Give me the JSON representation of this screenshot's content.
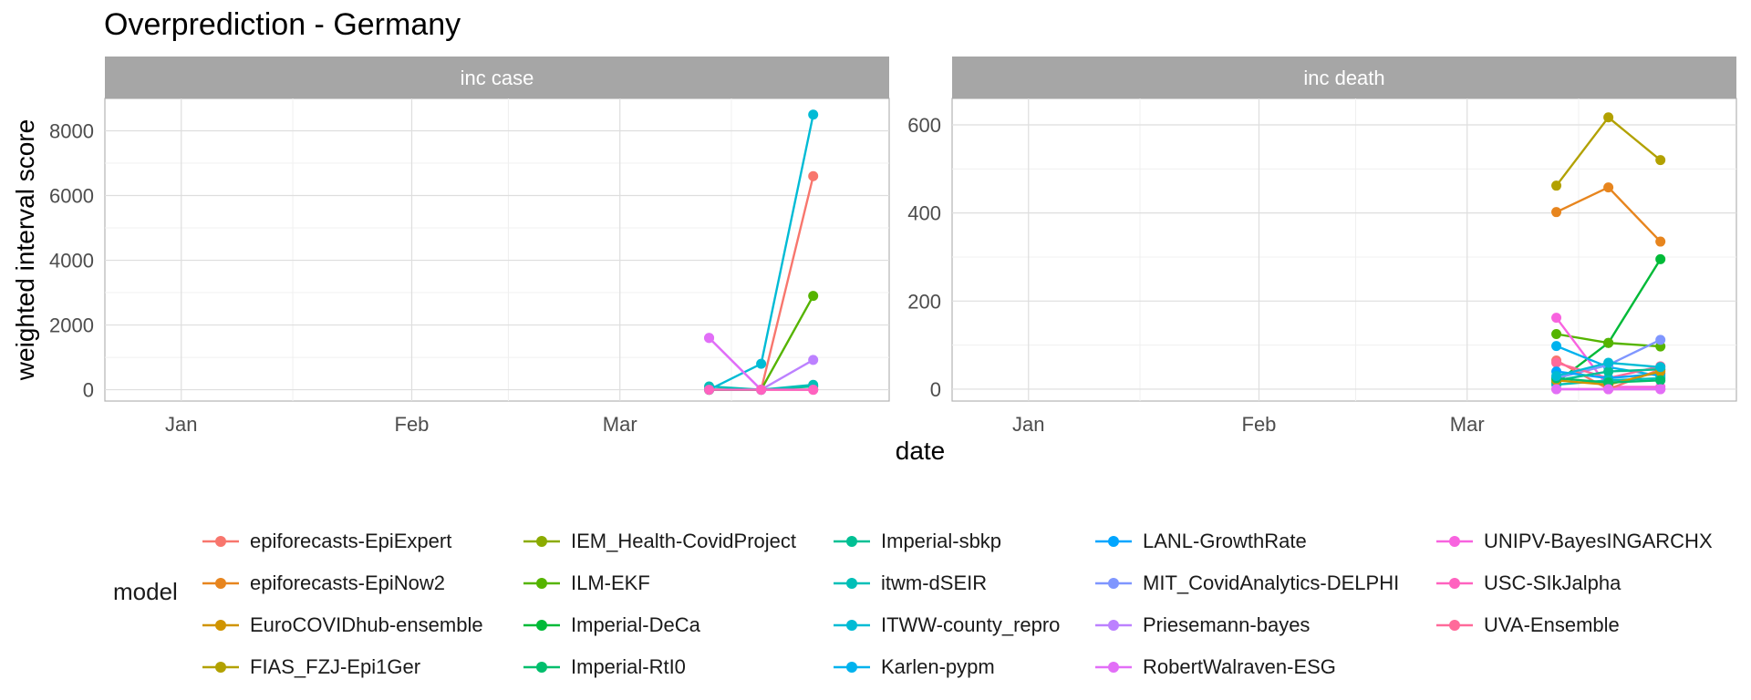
{
  "chart_data": {
    "type": "line",
    "title": "Overprediction - Germany",
    "xlabel": "date",
    "ylabel": "weighted interval score",
    "legend_title": "model",
    "legend_position": "bottom",
    "grid": true,
    "x_ticks": [
      "Jan",
      "Feb",
      "Mar"
    ],
    "x_dates": [
      "2021-03-13",
      "2021-03-20",
      "2021-03-27"
    ],
    "xlim": [
      "2020-12-27",
      "2021-03-27"
    ],
    "models": [
      {
        "name": "epiforecasts-EpiExpert",
        "color": "#F8766D"
      },
      {
        "name": "epiforecasts-EpiNow2",
        "color": "#E7851E"
      },
      {
        "name": "EuroCOVIDhub-ensemble",
        "color": "#D09400"
      },
      {
        "name": "FIAS_FZJ-Epi1Ger",
        "color": "#B2A100"
      },
      {
        "name": "IEM_Health-CovidProject",
        "color": "#8BAB00"
      },
      {
        "name": "ILM-EKF",
        "color": "#55B400"
      },
      {
        "name": "Imperial-DeCa",
        "color": "#00BA38"
      },
      {
        "name": "Imperial-RtI0",
        "color": "#00BE6C"
      },
      {
        "name": "Imperial-sbkp",
        "color": "#00C094"
      },
      {
        "name": "itwm-dSEIR",
        "color": "#00BFB7"
      },
      {
        "name": "ITWW-county_repro",
        "color": "#00BBD5"
      },
      {
        "name": "Karlen-pypm",
        "color": "#00B2EE"
      },
      {
        "name": "LANL-GrowthRate",
        "color": "#00A5FF"
      },
      {
        "name": "MIT_CovidAnalytics-DELPHI",
        "color": "#7F96FF"
      },
      {
        "name": "Priesemann-bayes",
        "color": "#BC81FF"
      },
      {
        "name": "RobertWalraven-ESG",
        "color": "#E26EF7"
      },
      {
        "name": "UNIPV-BayesINGARCHX",
        "color": "#F863DF"
      },
      {
        "name": "USC-SIkJalpha",
        "color": "#FF62BF"
      },
      {
        "name": "UVA-Ensemble",
        "color": "#FF6A9A"
      }
    ],
    "panels": [
      {
        "strip": "inc case",
        "ylim": [
          -350,
          9000
        ],
        "y_ticks": [
          0,
          2000,
          4000,
          6000,
          8000
        ],
        "series": [
          {
            "model": "epiforecasts-EpiExpert",
            "values": [
              0,
              0,
              6600
            ]
          },
          {
            "model": "epiforecasts-EpiNow2",
            "values": [
              0,
              0,
              0
            ]
          },
          {
            "model": "ILM-EKF",
            "values": [
              0,
              0,
              2900
            ]
          },
          {
            "model": "Imperial-sbkp",
            "values": [
              0,
              0,
              100
            ]
          },
          {
            "model": "itwm-dSEIR",
            "values": [
              100,
              0,
              150
            ]
          },
          {
            "model": "ITWW-county_repro",
            "values": [
              0,
              800,
              8500
            ]
          },
          {
            "model": "Priesemann-bayes",
            "values": [
              1600,
              0,
              920
            ]
          },
          {
            "model": "RobertWalraven-ESG",
            "values": [
              1600,
              0,
              0
            ]
          },
          {
            "model": "USC-SIkJalpha",
            "values": [
              0,
              0,
              0
            ]
          }
        ]
      },
      {
        "strip": "inc death",
        "ylim": [
          -27,
          660
        ],
        "y_ticks": [
          0,
          200,
          400,
          600
        ],
        "series": [
          {
            "model": "FIAS_FZJ-Epi1Ger",
            "values": [
              462,
              617,
              520
            ]
          },
          {
            "model": "epiforecasts-EpiNow2",
            "values": [
              402,
              458,
              335
            ]
          },
          {
            "model": "Imperial-DeCa",
            "values": [
              15,
              105,
              295
            ]
          },
          {
            "model": "ILM-EKF",
            "values": [
              125,
              105,
              97
            ]
          },
          {
            "model": "UNIPV-BayesINGARCHX",
            "values": [
              162,
              5,
              5
            ]
          },
          {
            "model": "Karlen-pypm",
            "values": [
              98,
              50,
              30
            ]
          },
          {
            "model": "MIT_CovidAnalytics-DELPHI",
            "values": [
              25,
              55,
              112
            ]
          },
          {
            "model": "epiforecasts-EpiExpert",
            "values": [
              65,
              0,
              45
            ]
          },
          {
            "model": "UVA-Ensemble",
            "values": [
              60,
              25,
              52
            ]
          },
          {
            "model": "LANL-GrowthRate",
            "values": [
              40,
              25,
              35
            ]
          },
          {
            "model": "Imperial-sbkp",
            "values": [
              20,
              40,
              45
            ]
          },
          {
            "model": "itwm-dSEIR",
            "values": [
              10,
              20,
              25
            ]
          },
          {
            "model": "EuroCOVIDhub-ensemble",
            "values": [
              20,
              10,
              40
            ]
          },
          {
            "model": "Imperial-RtI0",
            "values": [
              25,
              15,
              20
            ]
          },
          {
            "model": "ITWW-county_repro",
            "values": [
              30,
              60,
              50
            ]
          },
          {
            "model": "USC-SIkJalpha",
            "values": [
              0,
              0,
              0
            ]
          },
          {
            "model": "RobertWalraven-ESG",
            "values": [
              0,
              0,
              0
            ]
          }
        ]
      }
    ]
  }
}
